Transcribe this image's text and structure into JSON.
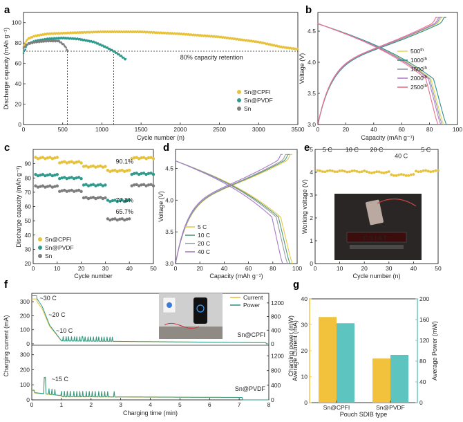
{
  "panels": {
    "a": "a",
    "b": "b",
    "c": "c",
    "d": "d",
    "e": "e",
    "f": "f",
    "g": "g"
  },
  "colors": {
    "cpfi": "#e6c13a",
    "pvdf": "#2e9a8c",
    "sn": "#7d7d7d",
    "c500": "#e8d95a",
    "c1000": "#2e8f85",
    "c1500": "#8f9aaa",
    "c2000": "#b07fc8",
    "c2500": "#e8708a",
    "rate5": "#e8c84a",
    "rate10": "#4d9a74",
    "rate20": "#9a9aa6",
    "rate40": "#a67ac8",
    "f_current": "#e6c13a",
    "f_power": "#2e9a8c",
    "g_cpfi": "#f2c23c",
    "g_pvdf": "#5ec4bf"
  },
  "chart_data": [
    {
      "panel": "a",
      "type": "scatter",
      "xlabel": "Cycle number (n)",
      "ylabel": "Discharge capacity (mAh g⁻¹)",
      "xlim": [
        0,
        3500
      ],
      "ylim": [
        0,
        110
      ],
      "xticks": [
        0,
        500,
        1000,
        1500,
        2000,
        2500,
        3000,
        3500
      ],
      "yticks": [
        0,
        20,
        40,
        60,
        80,
        100
      ],
      "series": [
        {
          "name": "Sn@CPFI",
          "color_key": "cpfi",
          "x": [
            0,
            50,
            150,
            300,
            600,
            1000,
            1500,
            2000,
            2500,
            3000,
            3300,
            3500
          ],
          "y": [
            76,
            84,
            87,
            89,
            90,
            91,
            91,
            89,
            86,
            81,
            76,
            74
          ]
        },
        {
          "name": "Sn@PVDF",
          "color_key": "pvdf",
          "x": [
            0,
            50,
            150,
            300,
            500,
            700,
            900,
            1050,
            1150,
            1250,
            1300
          ],
          "y": [
            70,
            79,
            82,
            84,
            85,
            84,
            81,
            76,
            72,
            67,
            64
          ]
        },
        {
          "name": "Sn",
          "color_key": "sn",
          "x": [
            0,
            50,
            150,
            300,
            450,
            520,
            560
          ],
          "y": [
            75,
            79,
            81,
            82,
            82,
            78,
            73
          ]
        }
      ],
      "annotation": "80% capacity retention",
      "retention_line_y": 72,
      "retention_drops_x": [
        560,
        1150
      ]
    },
    {
      "panel": "b",
      "type": "line",
      "xlabel": "Capacity (mAh g⁻¹)",
      "ylabel": "Voltage (V)",
      "xlim": [
        0,
        100
      ],
      "ylim": [
        3.0,
        4.8
      ],
      "xticks": [
        0,
        20,
        40,
        60,
        80,
        100
      ],
      "yticks": [
        3.0,
        3.5,
        4.0,
        4.5
      ],
      "series": [
        {
          "name": "500th",
          "label": "500",
          "sup": "th",
          "color_key": "c500",
          "qmax": 90
        },
        {
          "name": "1000th",
          "label": "1000",
          "sup": "th",
          "color_key": "c1000",
          "qmax": 92
        },
        {
          "name": "1500th",
          "label": "1500",
          "sup": "th",
          "color_key": "c1500",
          "qmax": 89
        },
        {
          "name": "2000th",
          "label": "2000",
          "sup": "th",
          "color_key": "c2000",
          "qmax": 88
        },
        {
          "name": "2500th",
          "label": "2500",
          "sup": "th",
          "color_key": "c2500",
          "qmax": 86
        }
      ]
    },
    {
      "panel": "c",
      "type": "scatter",
      "xlabel": "Cycle number",
      "ylabel": "Discharge capacity (mAh g⁻¹)",
      "xlim": [
        0,
        50
      ],
      "ylim": [
        20,
        100
      ],
      "xticks": [
        0,
        10,
        20,
        30,
        40,
        50
      ],
      "yticks": [
        20,
        30,
        40,
        50,
        60,
        70,
        80,
        90
      ],
      "segments": [
        [
          1,
          10
        ],
        [
          11,
          20
        ],
        [
          21,
          30
        ],
        [
          31,
          40
        ],
        [
          41,
          50
        ]
      ],
      "series": [
        {
          "name": "Sn@CPFI",
          "color_key": "cpfi",
          "levels": [
            94,
            91,
            88,
            85,
            94
          ]
        },
        {
          "name": "Sn@PVDF",
          "color_key": "pvdf",
          "levels": [
            82,
            80,
            75,
            64,
            83
          ]
        },
        {
          "name": "Sn",
          "color_key": "sn",
          "levels": [
            74,
            71,
            66,
            51,
            75
          ]
        }
      ],
      "labels": [
        "90.1%",
        "77.8%",
        "65.7%"
      ]
    },
    {
      "panel": "d",
      "type": "line",
      "xlabel": "Capacity (mAh g⁻¹)",
      "ylabel": "Voltage (V)",
      "xlim": [
        0,
        100
      ],
      "ylim": [
        3.0,
        4.8
      ],
      "xticks": [
        0,
        20,
        40,
        60,
        80,
        100
      ],
      "yticks": [
        3.0,
        3.5,
        4.0,
        4.5
      ],
      "series": [
        {
          "name": "5 C",
          "color_key": "rate5",
          "qmax": 96
        },
        {
          "name": "10 C",
          "color_key": "rate10",
          "qmax": 94
        },
        {
          "name": "20 C",
          "color_key": "rate20",
          "qmax": 92
        },
        {
          "name": "40 C",
          "color_key": "rate40",
          "qmax": 88
        }
      ]
    },
    {
      "panel": "e",
      "type": "scatter",
      "xlabel": "Cycle number (n)",
      "ylabel": "Working voltage (V)",
      "xlim": [
        0,
        50
      ],
      "ylim": [
        0,
        5
      ],
      "xticks": [
        0,
        10,
        20,
        30,
        40,
        50
      ],
      "yticks": [
        0,
        1,
        2,
        3,
        4,
        5
      ],
      "levels": [
        4.05,
        4.04,
        4.0,
        3.88,
        4.05
      ],
      "rate_labels": [
        "5 C",
        "10 C",
        "20 C",
        "40 C",
        "5 C"
      ],
      "photo_text": "CSIAT"
    },
    {
      "panel": "f",
      "type": "line",
      "xlabel": "Charging time (min)",
      "ylabel": "Charging current (mA)",
      "ylabel2": "Charging power (mW)",
      "xlim": [
        0,
        8
      ],
      "xticks": [
        0,
        1,
        2,
        3,
        4,
        5,
        6,
        7,
        8
      ],
      "top": {
        "name": "Sn@CPFI",
        "yticks": [
          0,
          100,
          200,
          300
        ],
        "y2ticks": [
          0,
          400,
          800,
          1200
        ],
        "annotations": [
          "~30 C",
          "~20 C",
          "~10 C"
        ]
      },
      "bottom": {
        "name": "Sn@PVDF",
        "yticks": [
          0,
          100,
          200,
          300
        ],
        "y2ticks": [
          0,
          400,
          800,
          1200
        ],
        "annotations": [
          "~15 C"
        ]
      },
      "legend": [
        "Current",
        "Power"
      ]
    },
    {
      "panel": "g",
      "type": "bar",
      "categories": [
        "Sn@CPFI",
        "Sn@PVDF"
      ],
      "xlabel": "Pouch SDIB type",
      "ylabel": "Average Current (mA)",
      "ylabel2": "Average Power (mW)",
      "ylim": [
        0,
        40
      ],
      "y2lim": [
        0,
        200
      ],
      "yticks": [
        0,
        10,
        20,
        30,
        40
      ],
      "y2ticks": [
        0,
        40,
        80,
        120,
        160,
        200
      ],
      "series": [
        {
          "name": "Average Current",
          "color_key": "g_cpfi",
          "values": [
            33,
            17
          ]
        },
        {
          "name": "Average Power",
          "color_key": "g_pvdf",
          "values": [
            153,
            92
          ],
          "axis": "right"
        }
      ]
    }
  ]
}
